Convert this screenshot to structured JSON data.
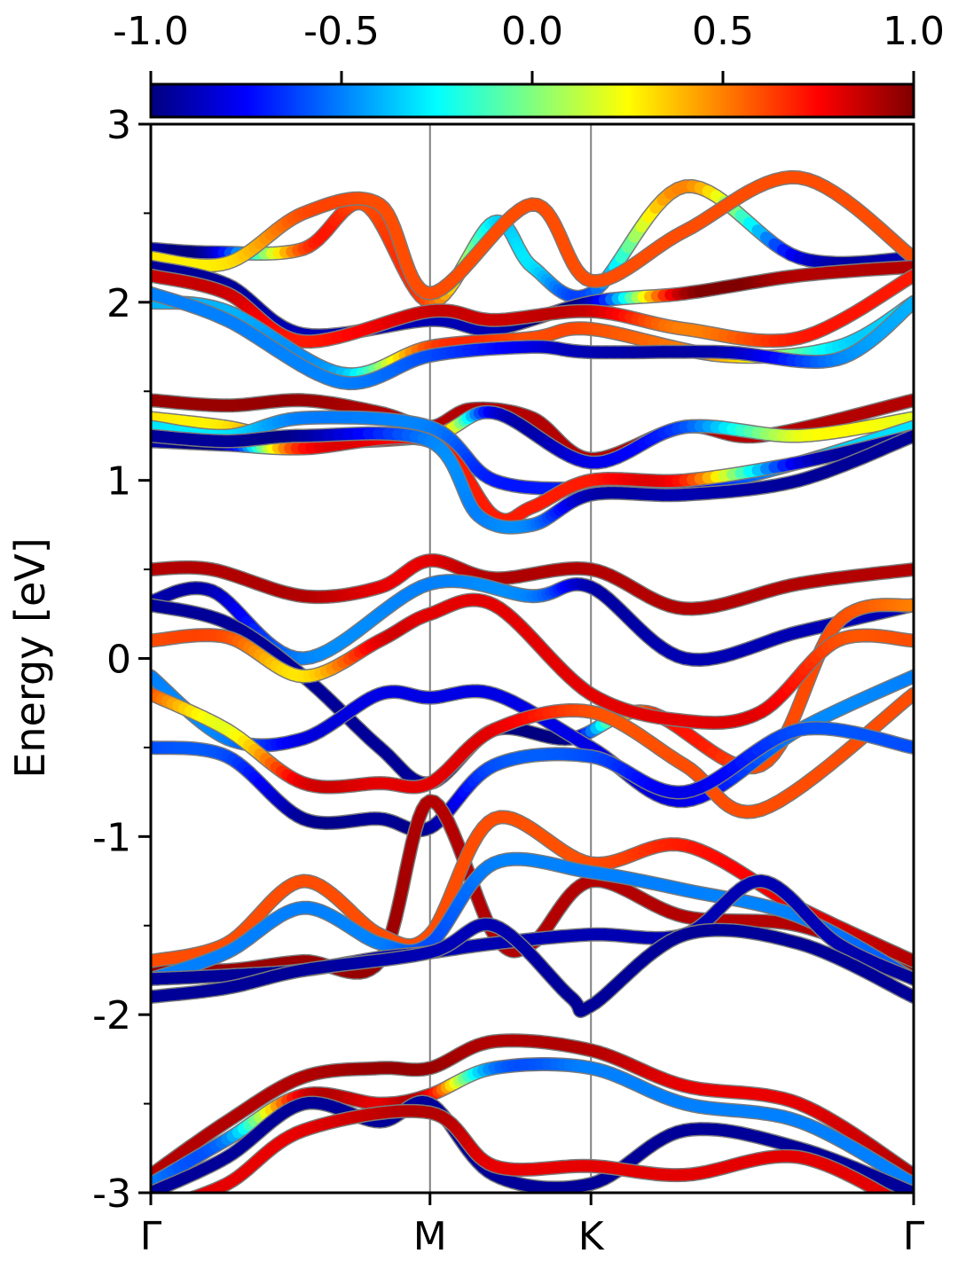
{
  "chart_data": {
    "type": "line",
    "subtype": "band-structure",
    "ylabel": "Energy [eV]",
    "ylim": [
      -3,
      3
    ],
    "y_ticks": [
      -3,
      -2,
      -1,
      0,
      1,
      2,
      3
    ],
    "y_tick_labels": [
      "-3",
      "-2",
      "-1",
      "0",
      "1",
      "2",
      "3"
    ],
    "x_ticks": [
      "Γ",
      "M",
      "K",
      "Γ"
    ],
    "k_path_fractions": [
      0,
      0.366,
      0.577,
      1
    ],
    "grid": false,
    "colorbar": {
      "location": "top",
      "colormap": "jet",
      "range": [
        -1.0,
        1.0
      ],
      "tick_values": [
        -1.0,
        -0.5,
        0.0,
        0.5,
        1.0
      ],
      "tick_labels": [
        "-1.0",
        "-0.5",
        "0.0",
        "0.5",
        "1.0"
      ]
    },
    "series": [
      {
        "k": [
          0,
          0.08,
          0.2,
          0.28,
          0.366,
          0.45,
          0.5,
          0.577,
          0.7,
          0.85,
          1
        ],
        "energy": [
          2.3,
          2.28,
          2.3,
          2.55,
          2.0,
          2.45,
          2.2,
          2.05,
          2.65,
          2.25,
          2.25
        ],
        "c": [
          -0.9,
          -0.9,
          0.6,
          0.6,
          0.6,
          -0.3,
          -0.3,
          -0.6,
          0.5,
          -0.8,
          -0.9
        ]
      },
      {
        "k": [
          0,
          0.1,
          0.2,
          0.3,
          0.366,
          0.5,
          0.577,
          0.7,
          0.85,
          1
        ],
        "energy": [
          2.25,
          2.22,
          2.5,
          2.55,
          2.05,
          2.55,
          2.12,
          2.4,
          2.7,
          2.25
        ],
        "c": [
          0.3,
          0.3,
          0.6,
          0.6,
          0.6,
          0.6,
          0.6,
          0.6,
          0.6,
          0.6
        ]
      },
      {
        "k": [
          0,
          0.1,
          0.2,
          0.366,
          0.45,
          0.577,
          0.7,
          0.85,
          1
        ],
        "energy": [
          2.2,
          2.1,
          1.82,
          1.9,
          1.85,
          2.0,
          2.05,
          2.15,
          2.2
        ],
        "c": [
          -0.95,
          -0.95,
          -0.9,
          -0.9,
          -0.9,
          -0.9,
          0.9,
          0.9,
          0.9
        ]
      },
      {
        "k": [
          0,
          0.1,
          0.2,
          0.366,
          0.45,
          0.577,
          0.7,
          0.85,
          1
        ],
        "energy": [
          2.15,
          2.05,
          1.78,
          1.95,
          1.9,
          1.95,
          1.85,
          1.8,
          2.15
        ],
        "c": [
          0.85,
          0.85,
          0.7,
          0.85,
          0.85,
          0.85,
          0.5,
          0.7,
          0.7
        ]
      },
      {
        "k": [
          0,
          0.1,
          0.25,
          0.366,
          0.5,
          0.577,
          0.75,
          0.9,
          1
        ],
        "energy": [
          2.0,
          1.95,
          1.6,
          1.75,
          1.8,
          1.85,
          1.7,
          1.75,
          2.0
        ],
        "c": [
          -0.4,
          -0.4,
          -0.4,
          0.6,
          0.6,
          0.6,
          0.4,
          -0.3,
          -0.3
        ]
      },
      {
        "k": [
          0,
          0.1,
          0.25,
          0.366,
          0.5,
          0.577,
          0.75,
          0.9,
          1
        ],
        "energy": [
          2.05,
          1.9,
          1.55,
          1.7,
          1.75,
          1.72,
          1.72,
          1.68,
          2.0
        ],
        "c": [
          -0.5,
          -0.5,
          -0.5,
          -0.6,
          -0.8,
          -0.9,
          -0.9,
          -0.5,
          -0.4
        ]
      },
      {
        "k": [
          0,
          0.1,
          0.2,
          0.3,
          0.366,
          0.42,
          0.5,
          0.577,
          0.7,
          0.8,
          1
        ],
        "energy": [
          1.45,
          1.42,
          1.45,
          1.38,
          1.3,
          1.4,
          1.35,
          1.12,
          1.3,
          1.25,
          1.45
        ],
        "c": [
          0.95,
          0.95,
          0.95,
          0.9,
          0.9,
          0.9,
          0.9,
          0.9,
          0.9,
          0.9,
          0.9
        ]
      },
      {
        "k": [
          0,
          0.1,
          0.2,
          0.366,
          0.45,
          0.577,
          0.7,
          0.85,
          1
        ],
        "energy": [
          1.35,
          1.3,
          1.22,
          1.25,
          1.38,
          1.1,
          1.3,
          1.25,
          1.35
        ],
        "c": [
          0.3,
          0.3,
          0.7,
          0.7,
          -0.8,
          -0.8,
          -0.6,
          0.2,
          0.2
        ]
      },
      {
        "k": [
          0,
          0.1,
          0.2,
          0.366,
          0.45,
          0.577,
          0.7,
          0.85,
          1
        ],
        "energy": [
          1.3,
          1.25,
          1.35,
          1.3,
          1.0,
          0.95,
          0.95,
          1.1,
          1.3
        ],
        "c": [
          -0.3,
          -0.3,
          -0.5,
          -0.5,
          -0.7,
          -0.7,
          -0.8,
          -0.4,
          -0.3
        ]
      },
      {
        "k": [
          0,
          0.1,
          0.2,
          0.366,
          0.45,
          0.5,
          0.577,
          0.7,
          0.85,
          1
        ],
        "energy": [
          1.22,
          1.2,
          1.18,
          1.22,
          0.8,
          0.85,
          1.0,
          1.0,
          1.1,
          1.25
        ],
        "c": [
          -0.9,
          -0.9,
          0.7,
          0.7,
          0.7,
          0.7,
          0.7,
          0.7,
          -0.8,
          -0.9
        ]
      },
      {
        "k": [
          0,
          0.1,
          0.2,
          0.366,
          0.43,
          0.5,
          0.577,
          0.7,
          0.85,
          1
        ],
        "energy": [
          1.25,
          1.22,
          1.25,
          1.22,
          0.8,
          0.75,
          0.92,
          0.92,
          1.0,
          1.25
        ],
        "c": [
          -0.95,
          -0.95,
          -0.95,
          -0.5,
          -0.5,
          -0.5,
          -0.9,
          -0.9,
          -0.95,
          -0.95
        ]
      },
      {
        "k": [
          0,
          0.08,
          0.2,
          0.3,
          0.366,
          0.45,
          0.577,
          0.7,
          0.85,
          1
        ],
        "energy": [
          0.5,
          0.5,
          0.35,
          0.4,
          0.55,
          0.45,
          0.5,
          0.28,
          0.42,
          0.5
        ],
        "c": [
          0.9,
          0.9,
          0.9,
          0.8,
          0.8,
          0.9,
          0.9,
          0.9,
          0.9,
          0.9
        ]
      },
      {
        "k": [
          0,
          0.08,
          0.2,
          0.366,
          0.5,
          0.577,
          0.7,
          0.85,
          1
        ],
        "energy": [
          0.32,
          0.38,
          0.0,
          0.42,
          0.35,
          0.4,
          0.0,
          0.15,
          0.3
        ],
        "c": [
          -0.9,
          -0.9,
          -0.5,
          -0.5,
          -0.5,
          -0.9,
          -0.9,
          -0.9,
          -0.9
        ]
      },
      {
        "k": [
          0,
          0.1,
          0.2,
          0.3,
          0.366,
          0.45,
          0.55,
          0.65,
          0.8,
          0.9,
          1
        ],
        "energy": [
          0.3,
          0.2,
          -0.1,
          -0.5,
          -0.7,
          -0.4,
          -0.45,
          -0.3,
          -0.6,
          0.2,
          0.3
        ],
        "c": [
          -0.95,
          -0.95,
          -0.95,
          -0.95,
          -0.95,
          -0.95,
          -0.95,
          0.6,
          0.6,
          0.6,
          0.5
        ]
      },
      {
        "k": [
          0,
          0.1,
          0.2,
          0.3,
          0.366,
          0.45,
          0.577,
          0.7,
          0.8,
          0.9,
          1
        ],
        "energy": [
          0.1,
          0.12,
          -0.1,
          0.1,
          0.25,
          0.3,
          -0.2,
          -0.35,
          -0.3,
          0.1,
          0.1
        ],
        "c": [
          0.6,
          0.6,
          0.3,
          0.8,
          0.8,
          0.8,
          0.8,
          0.8,
          0.8,
          0.6,
          0.6
        ]
      },
      {
        "k": [
          0,
          0.1,
          0.2,
          0.3,
          0.366,
          0.45,
          0.577,
          0.7,
          0.85,
          1
        ],
        "energy": [
          -0.1,
          -0.45,
          -0.45,
          -0.2,
          -0.22,
          -0.2,
          -0.5,
          -0.8,
          -0.4,
          -0.1
        ],
        "c": [
          -0.5,
          -0.5,
          -0.8,
          -0.8,
          -0.8,
          -0.8,
          -0.8,
          -0.8,
          -0.5,
          -0.5
        ]
      },
      {
        "k": [
          0,
          0.1,
          0.2,
          0.3,
          0.366,
          0.45,
          0.577,
          0.7,
          0.8,
          1
        ],
        "energy": [
          -0.2,
          -0.4,
          -0.7,
          -0.7,
          -0.7,
          -0.4,
          -0.3,
          -0.6,
          -0.85,
          -0.2
        ],
        "c": [
          0.6,
          0.2,
          0.8,
          0.8,
          0.8,
          0.8,
          0.6,
          0.6,
          0.6,
          0.6
        ]
      },
      {
        "k": [
          0,
          0.1,
          0.2,
          0.3,
          0.366,
          0.45,
          0.577,
          0.7,
          0.85,
          1
        ],
        "energy": [
          -0.5,
          -0.55,
          -0.9,
          -0.9,
          -0.95,
          -0.6,
          -0.55,
          -0.75,
          -0.4,
          -0.5
        ],
        "c": [
          -0.6,
          -0.6,
          -0.95,
          -0.95,
          -0.95,
          -0.6,
          -0.6,
          -0.8,
          -0.6,
          -0.6
        ]
      },
      {
        "k": [
          0,
          0.1,
          0.2,
          0.3,
          0.366,
          0.45,
          0.5,
          0.577,
          0.7,
          0.85,
          1
        ],
        "energy": [
          -1.75,
          -1.75,
          -1.7,
          -1.7,
          -0.8,
          -1.55,
          -1.6,
          -1.25,
          -1.45,
          -1.5,
          -1.75
        ],
        "c": [
          0.95,
          0.95,
          0.95,
          0.95,
          0.9,
          0.9,
          0.9,
          0.9,
          0.9,
          0.9,
          0.95
        ]
      },
      {
        "k": [
          0,
          0.1,
          0.2,
          0.3,
          0.366,
          0.45,
          0.577,
          0.7,
          0.85,
          1
        ],
        "energy": [
          -1.7,
          -1.6,
          -1.25,
          -1.55,
          -1.55,
          -0.9,
          -1.15,
          -1.05,
          -1.4,
          -1.7
        ],
        "c": [
          0.6,
          0.6,
          0.6,
          0.6,
          0.6,
          0.6,
          0.6,
          0.7,
          0.8,
          0.9
        ]
      },
      {
        "k": [
          0,
          0.1,
          0.2,
          0.3,
          0.366,
          0.45,
          0.577,
          0.7,
          0.85,
          1
        ],
        "energy": [
          -1.8,
          -1.65,
          -1.4,
          -1.6,
          -1.6,
          -1.15,
          -1.2,
          -1.3,
          -1.45,
          -1.8
        ],
        "c": [
          -0.5,
          -0.5,
          -0.5,
          -0.5,
          -0.6,
          -0.5,
          -0.5,
          -0.5,
          -0.5,
          -0.6
        ]
      },
      {
        "k": [
          0,
          0.1,
          0.2,
          0.3,
          0.366,
          0.45,
          0.577,
          0.7,
          0.8,
          0.9,
          1
        ],
        "energy": [
          -1.8,
          -1.78,
          -1.75,
          -1.68,
          -1.65,
          -1.6,
          -1.55,
          -1.55,
          -1.25,
          -1.6,
          -1.8
        ],
        "c": [
          -0.95,
          -0.95,
          -0.95,
          -0.9,
          -0.9,
          -0.9,
          -0.9,
          -0.9,
          -0.9,
          -0.9,
          -0.95
        ]
      },
      {
        "k": [
          0,
          0.1,
          0.2,
          0.366,
          0.45,
          0.55,
          0.577,
          0.7,
          0.85,
          1
        ],
        "energy": [
          -1.9,
          -1.85,
          -1.75,
          -1.65,
          -1.5,
          -1.9,
          -1.95,
          -1.55,
          -1.6,
          -1.9
        ],
        "c": [
          -0.95,
          -0.95,
          -0.95,
          -0.9,
          -0.9,
          -0.95,
          -0.95,
          -0.95,
          -0.95,
          -0.95
        ]
      },
      {
        "k": [
          0,
          0.1,
          0.2,
          0.3,
          0.366,
          0.45,
          0.577,
          0.7,
          0.85,
          1
        ],
        "energy": [
          -2.9,
          -2.6,
          -2.35,
          -2.3,
          -2.3,
          -2.15,
          -2.2,
          -2.4,
          -2.5,
          -2.9
        ],
        "c": [
          0.9,
          0.9,
          0.9,
          0.95,
          0.95,
          0.9,
          0.9,
          0.8,
          0.8,
          0.9
        ]
      },
      {
        "k": [
          0,
          0.1,
          0.2,
          0.3,
          0.366,
          0.45,
          0.577,
          0.7,
          0.85,
          1
        ],
        "energy": [
          -2.95,
          -2.7,
          -2.45,
          -2.5,
          -2.45,
          -2.3,
          -2.3,
          -2.5,
          -2.6,
          -2.95
        ],
        "c": [
          -0.5,
          -0.5,
          0.8,
          0.8,
          0.8,
          -0.5,
          -0.5,
          -0.5,
          -0.5,
          -0.5
        ]
      },
      {
        "k": [
          0,
          0.1,
          0.2,
          0.3,
          0.366,
          0.45,
          0.577,
          0.7,
          0.85,
          1
        ],
        "energy": [
          -3.0,
          -2.8,
          -2.5,
          -2.6,
          -2.5,
          -2.9,
          -2.95,
          -2.65,
          -2.75,
          -3.0
        ],
        "c": [
          -0.95,
          -0.95,
          -0.95,
          -0.95,
          -0.95,
          -0.95,
          -0.95,
          -0.95,
          -0.95,
          -0.95
        ]
      },
      {
        "k": [
          0,
          0.1,
          0.2,
          0.366,
          0.45,
          0.577,
          0.7,
          0.85,
          1
        ],
        "energy": [
          -3.1,
          -2.95,
          -2.65,
          -2.55,
          -2.85,
          -2.85,
          -2.9,
          -2.8,
          -3.1
        ],
        "c": [
          0.8,
          0.8,
          0.8,
          0.9,
          0.8,
          0.8,
          0.8,
          0.8,
          0.8
        ]
      }
    ]
  }
}
